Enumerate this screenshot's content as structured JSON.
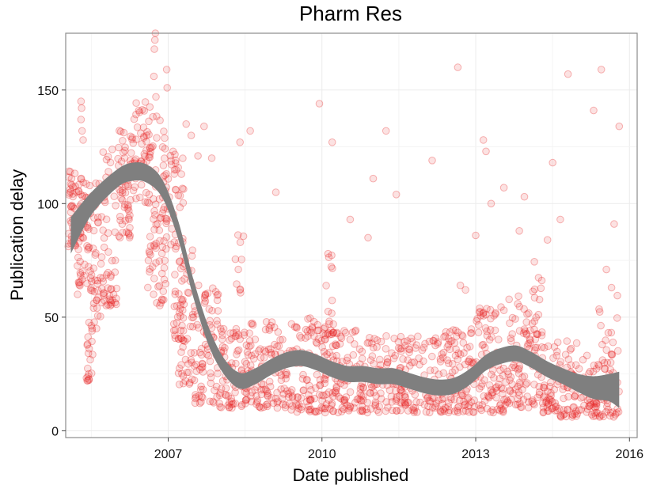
{
  "chart_data": {
    "type": "scatter",
    "title": "Pharm Res",
    "xlabel": "Date published",
    "ylabel": "Publication delay",
    "xlim": [
      2005.0,
      2016.15
    ],
    "ylim": [
      -3,
      175
    ],
    "x_ticks": [
      2007,
      2010,
      2013,
      2016
    ],
    "x_tick_labels": [
      "2007",
      "2010",
      "2013",
      "2016"
    ],
    "y_ticks": [
      0,
      50,
      100,
      150
    ],
    "y_tick_labels": [
      "0",
      "50",
      "100",
      "150"
    ],
    "grid": true,
    "point_color": "#e41a1c",
    "smooth_color": "#7f7f7f",
    "outliers": [
      {
        "x": 2006.75,
        "y": 175
      },
      {
        "x": 2006.74,
        "y": 172
      },
      {
        "x": 2006.73,
        "y": 168
      },
      {
        "x": 2006.72,
        "y": 156
      },
      {
        "x": 2006.76,
        "y": 147
      },
      {
        "x": 2006.97,
        "y": 159
      },
      {
        "x": 2006.98,
        "y": 151
      },
      {
        "x": 2005.3,
        "y": 145
      },
      {
        "x": 2005.31,
        "y": 142
      },
      {
        "x": 2005.3,
        "y": 137
      },
      {
        "x": 2005.32,
        "y": 132
      },
      {
        "x": 2005.34,
        "y": 128
      },
      {
        "x": 2007.35,
        "y": 135
      },
      {
        "x": 2007.45,
        "y": 130
      },
      {
        "x": 2007.7,
        "y": 134
      },
      {
        "x": 2007.58,
        "y": 121
      },
      {
        "x": 2007.85,
        "y": 120
      },
      {
        "x": 2008.4,
        "y": 127
      },
      {
        "x": 2008.6,
        "y": 132
      },
      {
        "x": 2009.1,
        "y": 105
      },
      {
        "x": 2009.95,
        "y": 144
      },
      {
        "x": 2010.2,
        "y": 127
      },
      {
        "x": 2010.55,
        "y": 93
      },
      {
        "x": 2010.9,
        "y": 85
      },
      {
        "x": 2011.0,
        "y": 111
      },
      {
        "x": 2011.25,
        "y": 132
      },
      {
        "x": 2011.45,
        "y": 104
      },
      {
        "x": 2012.15,
        "y": 119
      },
      {
        "x": 2012.65,
        "y": 160
      },
      {
        "x": 2013.15,
        "y": 128
      },
      {
        "x": 2013.2,
        "y": 123
      },
      {
        "x": 2013.3,
        "y": 100
      },
      {
        "x": 2013.55,
        "y": 107
      },
      {
        "x": 2013.95,
        "y": 103
      },
      {
        "x": 2014.5,
        "y": 118
      },
      {
        "x": 2014.8,
        "y": 157
      },
      {
        "x": 2015.3,
        "y": 141
      },
      {
        "x": 2015.45,
        "y": 159
      },
      {
        "x": 2015.8,
        "y": 134
      },
      {
        "x": 2015.7,
        "y": 91
      },
      {
        "x": 2015.55,
        "y": 71
      },
      {
        "x": 2015.65,
        "y": 63
      },
      {
        "x": 2014.4,
        "y": 84
      },
      {
        "x": 2013.85,
        "y": 88
      },
      {
        "x": 2013.0,
        "y": 86
      },
      {
        "x": 2012.7,
        "y": 64
      },
      {
        "x": 2012.8,
        "y": 62
      },
      {
        "x": 2014.65,
        "y": 93
      },
      {
        "x": 2005.6,
        "y": 45
      },
      {
        "x": 2005.42,
        "y": 22
      },
      {
        "x": 2005.45,
        "y": 25
      }
    ],
    "density_bands": [
      {
        "x0": 2005.05,
        "x1": 2005.2,
        "y0": 80,
        "y1": 115,
        "n": 40
      },
      {
        "x0": 2005.2,
        "x1": 2005.45,
        "y0": 60,
        "y1": 112,
        "n": 55
      },
      {
        "x0": 2005.4,
        "x1": 2005.55,
        "y0": 22,
        "y1": 45,
        "n": 16
      },
      {
        "x0": 2005.45,
        "x1": 2005.7,
        "y0": 45,
        "y1": 110,
        "n": 45
      },
      {
        "x0": 2005.7,
        "x1": 2006.0,
        "y0": 55,
        "y1": 125,
        "n": 55
      },
      {
        "x0": 2006.0,
        "x1": 2006.3,
        "y0": 85,
        "y1": 135,
        "n": 60
      },
      {
        "x0": 2006.3,
        "x1": 2006.65,
        "y0": 100,
        "y1": 145,
        "n": 60
      },
      {
        "x0": 2006.6,
        "x1": 2006.95,
        "y0": 55,
        "y1": 140,
        "n": 70
      },
      {
        "x0": 2006.9,
        "x1": 2007.15,
        "y0": 80,
        "y1": 130,
        "n": 30
      },
      {
        "x0": 2007.1,
        "x1": 2007.3,
        "y0": 40,
        "y1": 120,
        "n": 40
      },
      {
        "x0": 2007.2,
        "x1": 2007.5,
        "y0": 20,
        "y1": 80,
        "n": 55
      },
      {
        "x0": 2007.5,
        "x1": 2008.0,
        "y0": 12,
        "y1": 65,
        "n": 80
      },
      {
        "x0": 2008.0,
        "x1": 2008.6,
        "y0": 10,
        "y1": 45,
        "n": 90
      },
      {
        "x0": 2008.3,
        "x1": 2008.5,
        "y0": 60,
        "y1": 98,
        "n": 10
      },
      {
        "x0": 2008.6,
        "x1": 2009.4,
        "y0": 10,
        "y1": 48,
        "n": 110
      },
      {
        "x0": 2009.4,
        "x1": 2010.0,
        "y0": 8,
        "y1": 50,
        "n": 90
      },
      {
        "x0": 2010.05,
        "x1": 2010.25,
        "y0": 40,
        "y1": 78,
        "n": 20
      },
      {
        "x0": 2010.0,
        "x1": 2010.8,
        "y0": 8,
        "y1": 45,
        "n": 120
      },
      {
        "x0": 2010.8,
        "x1": 2011.6,
        "y0": 8,
        "y1": 42,
        "n": 110
      },
      {
        "x0": 2011.6,
        "x1": 2012.4,
        "y0": 8,
        "y1": 42,
        "n": 100
      },
      {
        "x0": 2012.4,
        "x1": 2013.0,
        "y0": 8,
        "y1": 45,
        "n": 90
      },
      {
        "x0": 2013.0,
        "x1": 2013.6,
        "y0": 8,
        "y1": 55,
        "n": 90
      },
      {
        "x0": 2013.6,
        "x1": 2014.3,
        "y0": 10,
        "y1": 60,
        "n": 100
      },
      {
        "x0": 2014.1,
        "x1": 2014.3,
        "y0": 35,
        "y1": 75,
        "n": 15
      },
      {
        "x0": 2014.3,
        "x1": 2015.0,
        "y0": 6,
        "y1": 40,
        "n": 100
      },
      {
        "x0": 2015.0,
        "x1": 2015.8,
        "y0": 6,
        "y1": 35,
        "n": 90
      },
      {
        "x0": 2015.4,
        "x1": 2015.8,
        "y0": 35,
        "y1": 60,
        "n": 12
      }
    ],
    "smooth": {
      "x": [
        2005.1,
        2005.5,
        2006.0,
        2006.3,
        2006.6,
        2006.9,
        2007.2,
        2007.5,
        2007.8,
        2008.1,
        2008.4,
        2008.7,
        2009.0,
        2009.3,
        2009.6,
        2009.9,
        2010.2,
        2010.5,
        2010.8,
        2011.1,
        2011.4,
        2011.7,
        2012.0,
        2012.3,
        2012.6,
        2012.9,
        2013.2,
        2013.5,
        2013.8,
        2014.1,
        2014.4,
        2014.7,
        2015.0,
        2015.3,
        2015.6,
        2015.8
      ],
      "y": [
        86,
        100,
        111,
        114,
        113,
        106,
        88,
        62,
        41,
        28,
        22,
        24,
        28,
        31,
        32,
        30,
        27,
        25,
        25,
        24,
        24,
        22,
        20,
        19,
        20,
        24,
        30,
        33,
        34,
        31,
        27,
        24,
        21,
        19,
        19,
        18
      ],
      "se": [
        8,
        5,
        4,
        4,
        4,
        4,
        4,
        4,
        4,
        3.5,
        3.5,
        3.5,
        3.5,
        3.5,
        3.5,
        3.5,
        3.5,
        3.5,
        3.5,
        3.5,
        3.5,
        3.5,
        3.5,
        3.5,
        3.5,
        3.5,
        3.5,
        3.5,
        3.5,
        3.5,
        3.5,
        3.5,
        4,
        5,
        6,
        8
      ]
    }
  }
}
